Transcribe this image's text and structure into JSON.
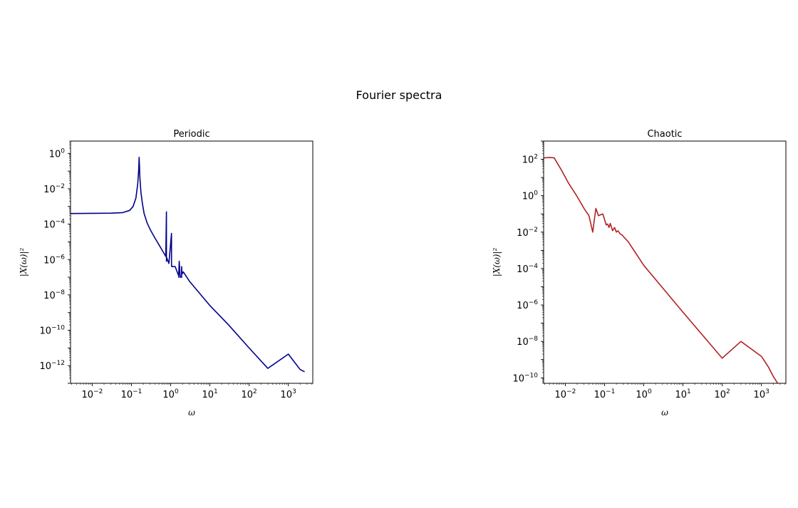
{
  "figure": {
    "suptitle": "Fourier spectra"
  },
  "chart_data": [
    {
      "type": "line",
      "title": "Periodic",
      "xlabel": "ω",
      "ylabel": "|X(ω)|²",
      "xscale": "log",
      "yscale": "log",
      "xlim": [
        0.0028,
        4200
      ],
      "ylim": [
        1e-13,
        5
      ],
      "x_tick_exponents": [
        -2,
        -1,
        0,
        1,
        2,
        3
      ],
      "y_tick_exponents": [
        -12,
        -10,
        -8,
        -6,
        -4,
        -2,
        0
      ],
      "color": "#00008b",
      "series": [
        {
          "x": [
            0.0028,
            0.01,
            0.03,
            0.06,
            0.09,
            0.11,
            0.13,
            0.145,
            0.153,
            0.157,
            0.16,
            0.163,
            0.168,
            0.175,
            0.19,
            0.21,
            0.25,
            0.3,
            0.4,
            0.5,
            0.6,
            0.75,
            0.78,
            0.78,
            0.79,
            0.9,
            1.05,
            1.05,
            1.06,
            1.3,
            1.6,
            1.6,
            1.65,
            1.75,
            1.9,
            1.9,
            1.95,
            2.1,
            3,
            10,
            30,
            100,
            300,
            1000,
            2000,
            2600
          ],
          "y": [
            0.0004,
            0.00041,
            0.00042,
            0.00045,
            0.0006,
            0.001,
            0.003,
            0.02,
            0.12,
            0.6,
            0.2,
            0.06,
            0.02,
            0.006,
            0.0015,
            0.0004,
            0.00012,
            5e-05,
            1.6e-05,
            7e-06,
            3.5e-06,
            1.5e-06,
            0.0005,
            8e-07,
            1.3e-06,
            6e-07,
            3e-05,
            6e-07,
            4e-07,
            4e-07,
            1.2e-07,
            1e-07,
            8e-07,
            1e-07,
            1e-07,
            4e-07,
            1.5e-07,
            2e-07,
            6e-08,
            2.5e-09,
            2e-10,
            1e-11,
            7e-13,
            4.5e-12,
            6e-13,
            4.5e-13
          ]
        }
      ]
    },
    {
      "type": "line",
      "title": "Chaotic",
      "xlabel": "ω",
      "ylabel": "|X(ω)|²",
      "xscale": "log",
      "yscale": "log",
      "xlim": [
        0.0028,
        4200
      ],
      "ylim": [
        5e-11,
        1000.0
      ],
      "x_tick_exponents": [
        -2,
        -1,
        0,
        1,
        2,
        3
      ],
      "y_tick_exponents": [
        -10,
        -8,
        -6,
        -4,
        -2,
        0,
        2
      ],
      "color": "#b22222",
      "series": [
        {
          "x": [
            0.0028,
            0.004,
            0.0052,
            0.008,
            0.012,
            0.02,
            0.03,
            0.04,
            0.05,
            0.06,
            0.07,
            0.08,
            0.09,
            0.1,
            0.11,
            0.12,
            0.13,
            0.14,
            0.16,
            0.18,
            0.2,
            0.22,
            0.25,
            0.28,
            0.32,
            0.4,
            1,
            10,
            100,
            300,
            1000,
            1500,
            2000,
            2600
          ],
          "y": [
            120,
            125,
            120,
            25,
            5,
            0.9,
            0.2,
            0.08,
            0.01,
            0.2,
            0.08,
            0.09,
            0.1,
            0.05,
            0.025,
            0.028,
            0.018,
            0.03,
            0.012,
            0.018,
            0.01,
            0.012,
            0.008,
            0.007,
            0.005,
            0.003,
            0.00015,
            4e-07,
            1.2e-09,
            1e-08,
            1.5e-09,
            4e-10,
            1.2e-10,
            5e-11
          ]
        }
      ]
    }
  ]
}
